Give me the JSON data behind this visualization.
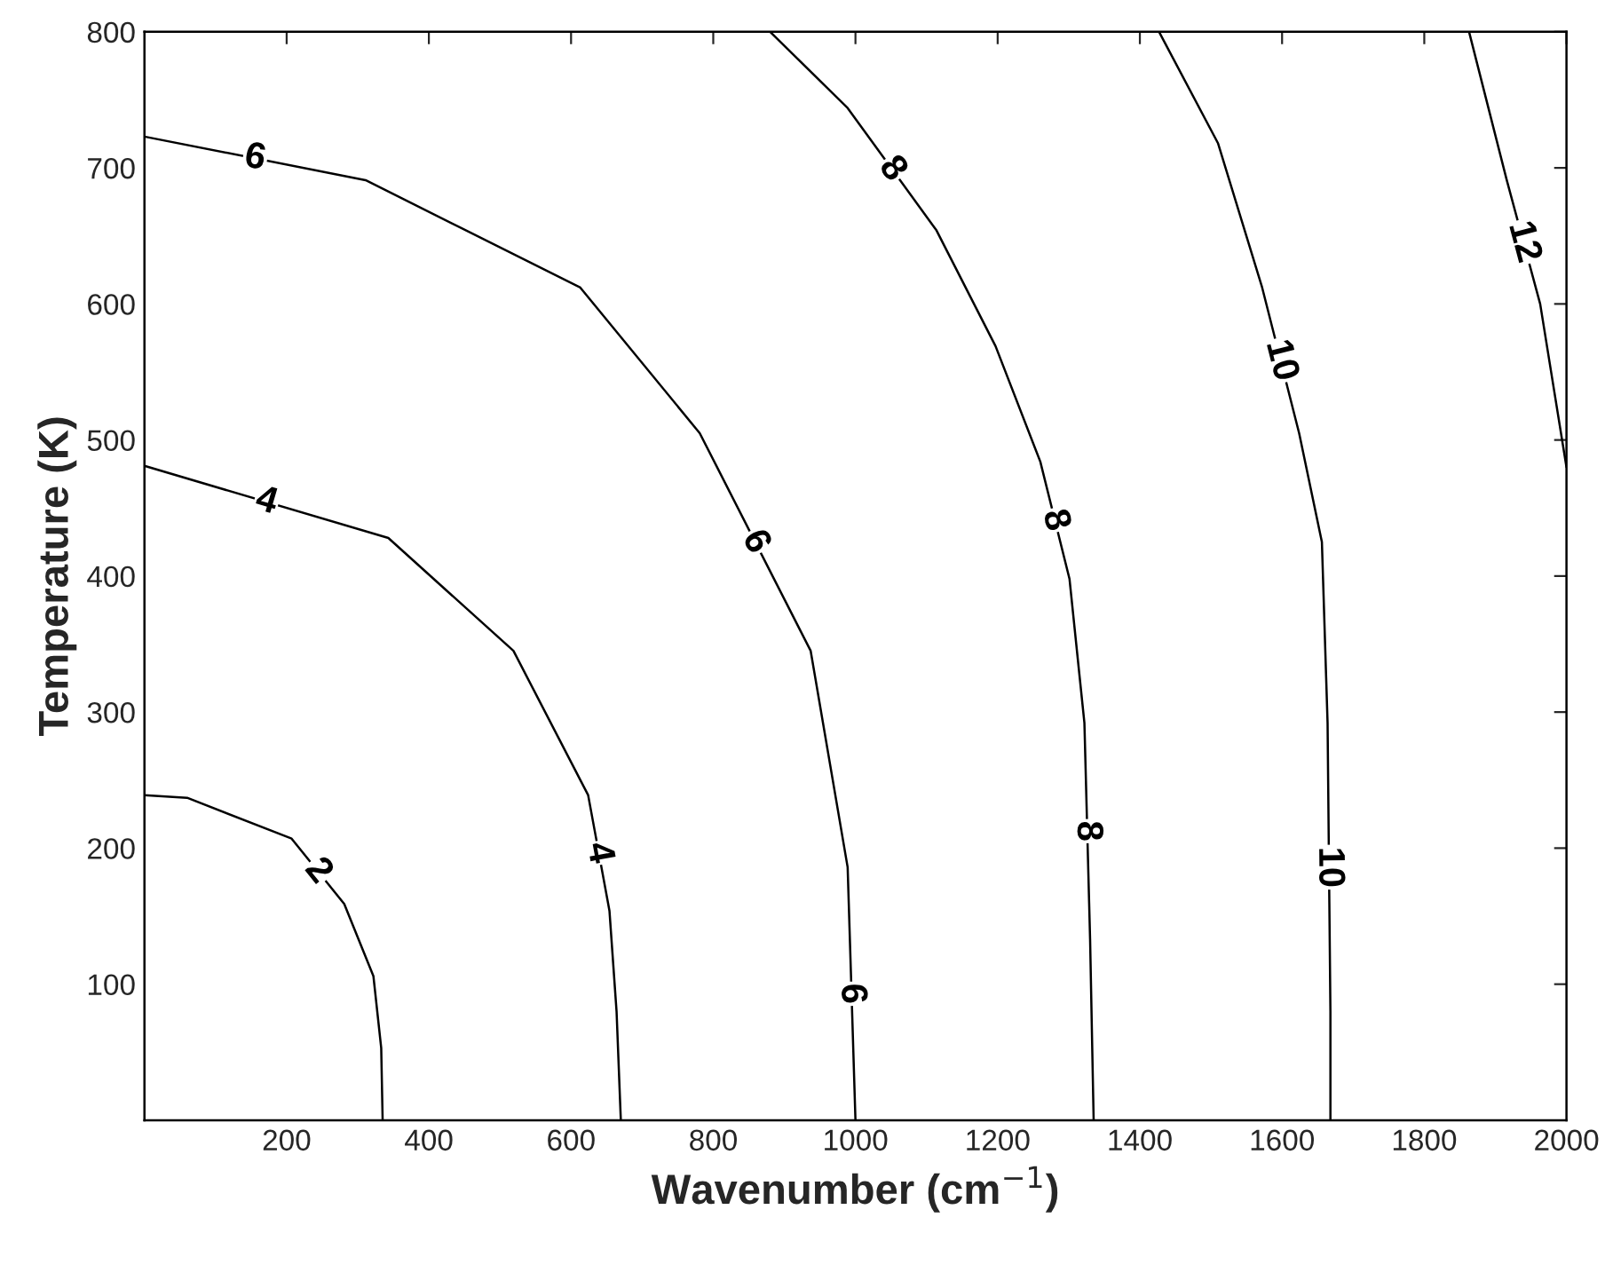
{
  "chart_data": {
    "type": "line",
    "xlabel": "Wavenumber (cm$^{−1}$)",
    "ylabel": "Temperature (K)",
    "xlim": [
      0,
      2000
    ],
    "ylim": [
      0,
      800
    ],
    "xticks": [
      200,
      400,
      600,
      800,
      1000,
      1200,
      1400,
      1600,
      1800,
      2000
    ],
    "yticks": [
      100,
      200,
      300,
      400,
      500,
      600,
      700,
      800
    ],
    "grid": false,
    "legend": false,
    "marker": "none",
    "line_style": "solid",
    "series": [
      {
        "name": "2",
        "color": "#000000",
        "x": [
          0,
          60,
          207,
          281,
          322,
          333,
          335
        ],
        "values": [
          239,
          237,
          207,
          159,
          106,
          53,
          0
        ]
      },
      {
        "name": "4",
        "color": "#000000",
        "x": [
          0,
          343,
          519,
          624,
          654,
          664,
          670
        ],
        "values": [
          481,
          428,
          345,
          239,
          154,
          80,
          0
        ]
      },
      {
        "name": "6",
        "color": "#000000",
        "x": [
          0,
          311,
          613,
          781,
          937,
          989,
          1000
        ],
        "values": [
          723,
          691,
          612,
          505,
          345,
          186,
          0
        ]
      },
      {
        "name": "8",
        "color": "#000000",
        "x": [
          880,
          989,
          1114,
          1197,
          1260,
          1301,
          1322,
          1330,
          1335
        ],
        "values": [
          800,
          744,
          654,
          569,
          484,
          398,
          292,
          133,
          0
        ]
      },
      {
        "name": "10",
        "color": "#000000",
        "x": [
          1427,
          1510,
          1572,
          1624,
          1656,
          1664,
          1668,
          1668
        ],
        "values": [
          800,
          718,
          612,
          505,
          425,
          292,
          80,
          0
        ]
      },
      {
        "name": "12",
        "color": "#000000",
        "x": [
          1863,
          1916,
          1963,
          2000
        ],
        "values": [
          800,
          691,
          600,
          480
        ]
      }
    ]
  }
}
